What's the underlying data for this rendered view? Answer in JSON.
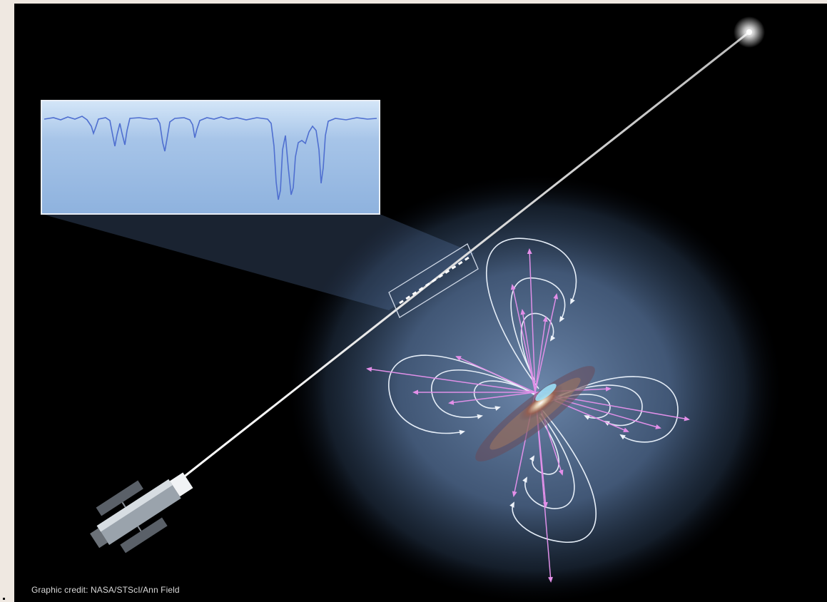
{
  "credit": "Graphic credit: NASA/STScI/Ann Field",
  "colors": {
    "background": "#000000",
    "page_margin": "#efe8e1",
    "halo": "#6f8fb8",
    "spectrum_panel": "#a9c6ea",
    "spectrum_line": "#4f6fd0",
    "outflow_arrow": "#e090e8",
    "circulation_arrow": "#e6eef8",
    "sightline": "#d8d8d8"
  },
  "icons": [
    "hubble-telescope-icon",
    "background-quasar-icon",
    "galaxy-icon"
  ]
}
